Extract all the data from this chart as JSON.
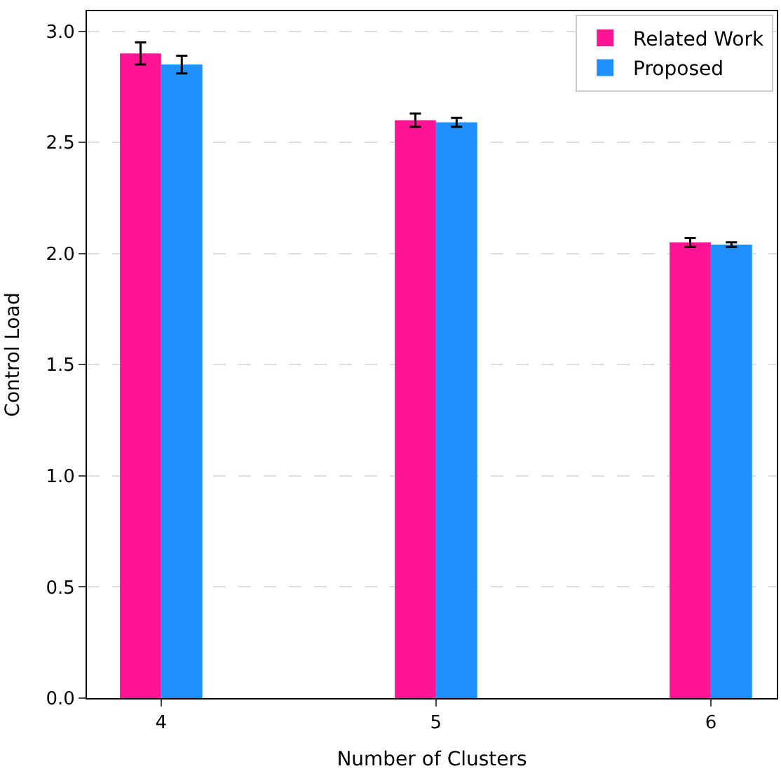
{
  "chart_data": {
    "type": "bar",
    "xlabel": "Number of Clusters",
    "ylabel": "Control Load",
    "categories": [
      "4",
      "5",
      "6"
    ],
    "series": [
      {
        "name": "Related Work",
        "color": "#ff1493",
        "values": [
          2.9,
          2.6,
          2.05
        ],
        "errors": [
          0.05,
          0.03,
          0.02
        ]
      },
      {
        "name": "Proposed",
        "color": "#1e90ff",
        "values": [
          2.85,
          2.59,
          2.04
        ],
        "errors": [
          0.04,
          0.02,
          0.01
        ]
      }
    ],
    "ylim": [
      0,
      3.09
    ],
    "yticks": [
      {
        "value": 0,
        "label": "0.0"
      },
      {
        "value": 0.5,
        "label": "0.5"
      },
      {
        "value": 1,
        "label": "1.0"
      },
      {
        "value": 1.5,
        "label": "1.5"
      },
      {
        "value": 2,
        "label": "2.0"
      },
      {
        "value": 2.5,
        "label": "2.5"
      },
      {
        "value": 3,
        "label": "3.0"
      }
    ],
    "grid": "y",
    "legend": "top right"
  }
}
